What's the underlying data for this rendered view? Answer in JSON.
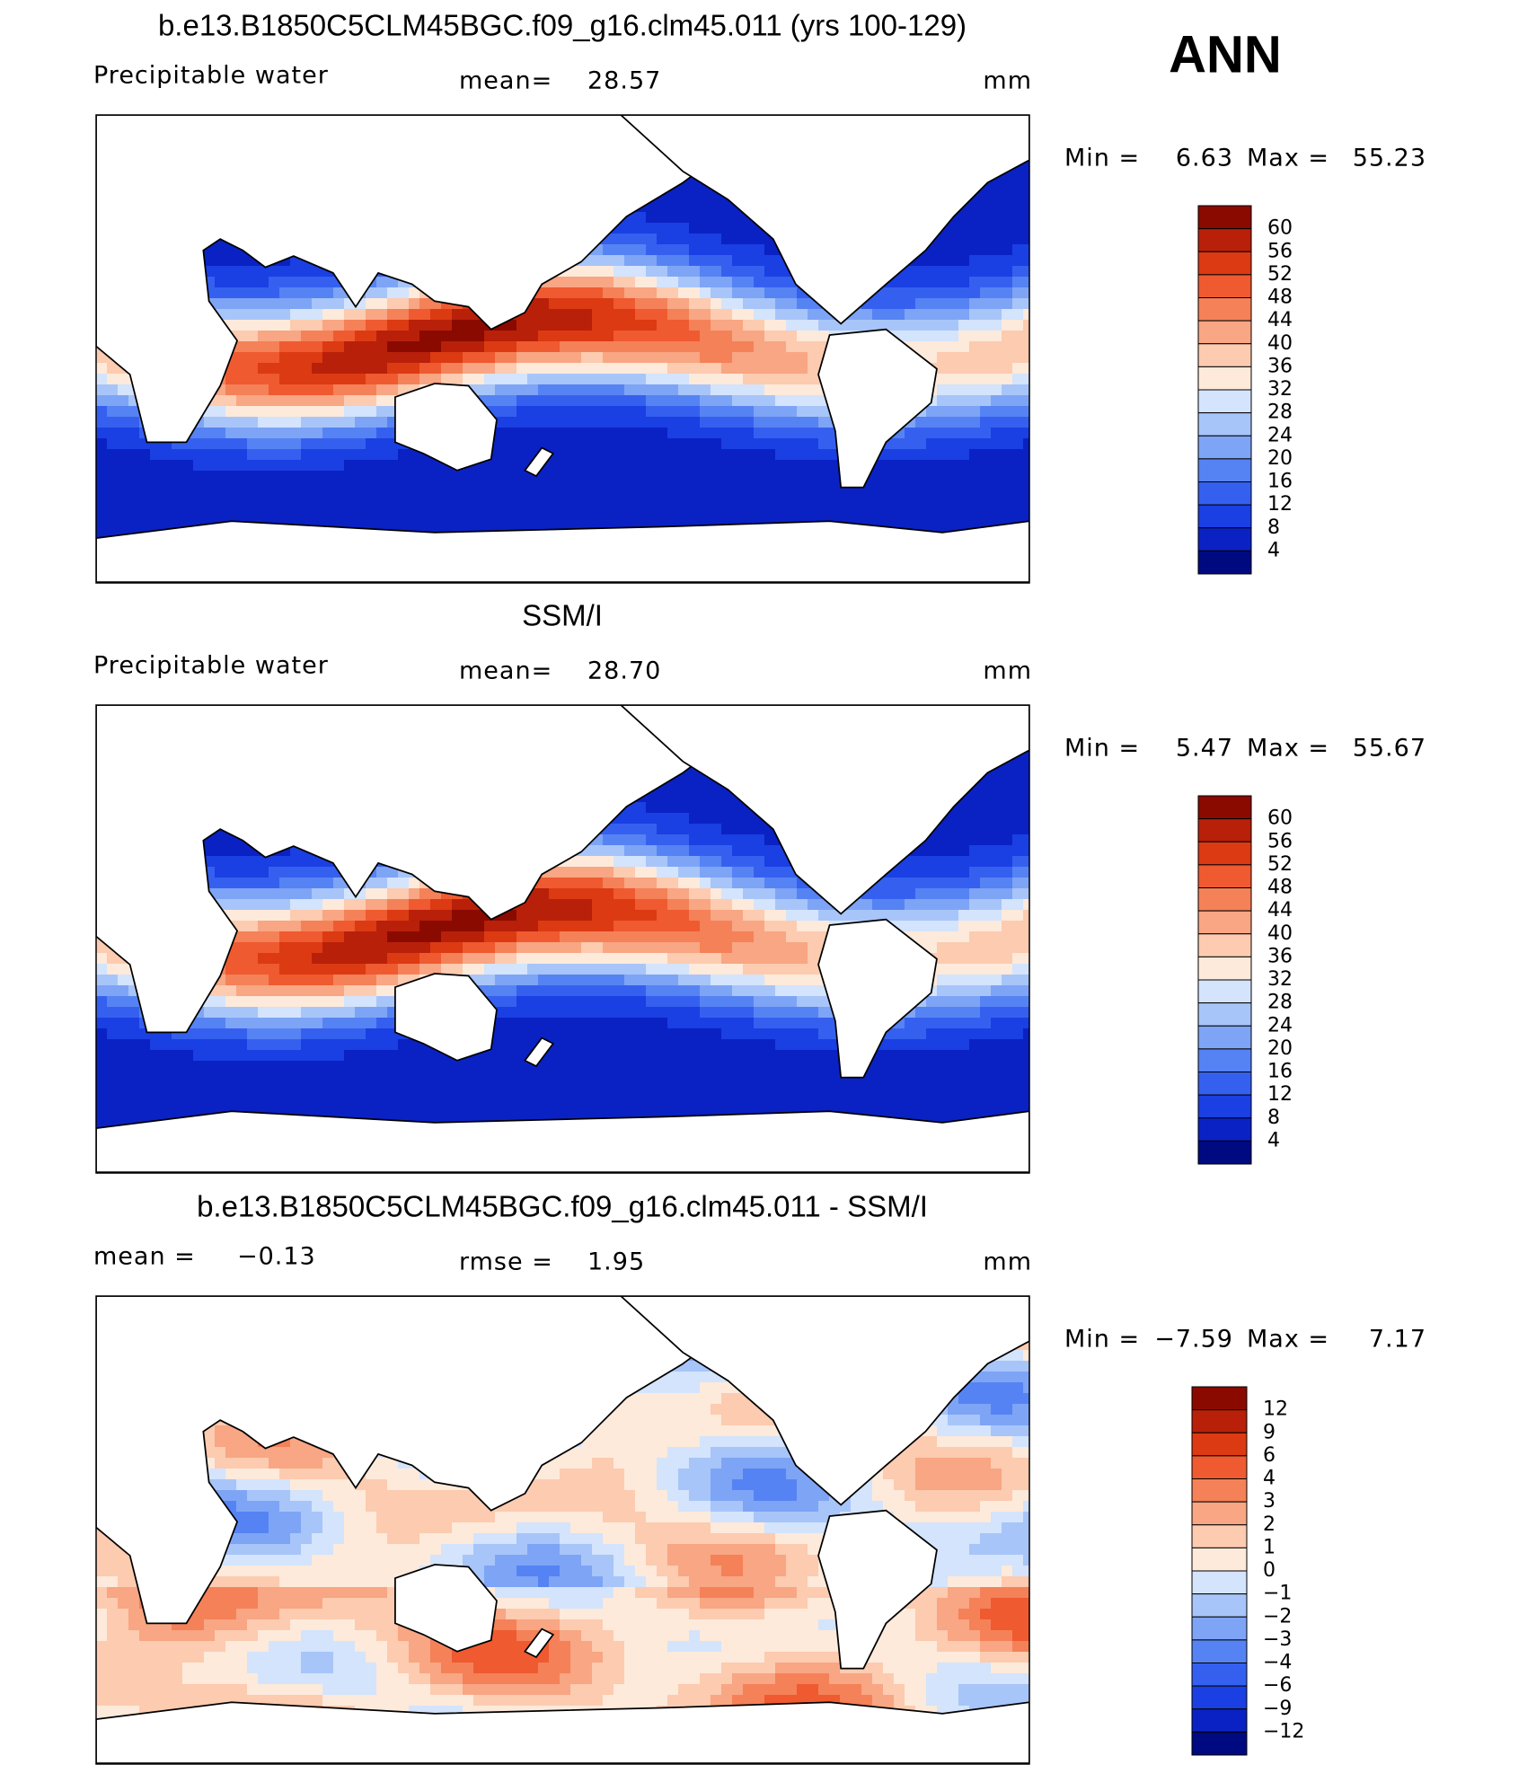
{
  "header": {
    "season": "ANN"
  },
  "panels": [
    {
      "title": "b.e13.B1850C5CLM45BGC.f09_g16.clm45.011 (yrs 100-129)",
      "left_label": "Precipitable  water",
      "mid_label": "mean=",
      "mid_value": "28.57",
      "units": "mm",
      "min_label": "Min =",
      "min_value": "6.63",
      "max_label": "Max =",
      "max_value": "55.23",
      "colorbar": {
        "labels": [
          "60",
          "56",
          "52",
          "48",
          "44",
          "40",
          "36",
          "32",
          "28",
          "24",
          "20",
          "16",
          "12",
          "8",
          "4"
        ],
        "colors": [
          "#8a0a00",
          "#b8200a",
          "#dc3a12",
          "#ef5a30",
          "#f58158",
          "#f8a683",
          "#fccbb0",
          "#fdeadb",
          "#d3e4fc",
          "#a8c5f9",
          "#7ea4f6",
          "#5683f3",
          "#3560ef",
          "#1a3fe3",
          "#0a22c4",
          "#000a80"
        ]
      }
    },
    {
      "title": "SSM/I",
      "left_label": "Precipitable  water",
      "mid_label": "mean=",
      "mid_value": "28.70",
      "units": "mm",
      "min_label": "Min =",
      "min_value": "5.47",
      "max_label": "Max =",
      "max_value": "55.67",
      "colorbar": {
        "labels": [
          "60",
          "56",
          "52",
          "48",
          "44",
          "40",
          "36",
          "32",
          "28",
          "24",
          "20",
          "16",
          "12",
          "8",
          "4"
        ],
        "colors": [
          "#8a0a00",
          "#b8200a",
          "#dc3a12",
          "#ef5a30",
          "#f58158",
          "#f8a683",
          "#fccbb0",
          "#fdeadb",
          "#d3e4fc",
          "#a8c5f9",
          "#7ea4f6",
          "#5683f3",
          "#3560ef",
          "#1a3fe3",
          "#0a22c4",
          "#000a80"
        ]
      }
    },
    {
      "title": "b.e13.B1850C5CLM45BGC.f09_g16.clm45.011 - SSM/I",
      "left_label": "mean =",
      "left_value": "−0.13",
      "mid_label": "rmse =",
      "mid_value": "1.95",
      "units": "mm",
      "min_label": "Min =",
      "min_value": "−7.59",
      "max_label": "Max =",
      "max_value": "7.17",
      "colorbar": {
        "labels": [
          "12",
          "9",
          "6",
          "4",
          "3",
          "2",
          "1",
          "0",
          "−1",
          "−2",
          "−3",
          "−4",
          "−6",
          "−9",
          "−12"
        ],
        "colors": [
          "#8a0a00",
          "#b8200a",
          "#dc3a12",
          "#ef5a30",
          "#f58158",
          "#f8a683",
          "#fccbb0",
          "#fdeadb",
          "#d3e4fc",
          "#a8c5f9",
          "#7ea4f6",
          "#5683f3",
          "#3560ef",
          "#1a3fe3",
          "#0a22c4",
          "#000a80"
        ]
      }
    }
  ]
}
